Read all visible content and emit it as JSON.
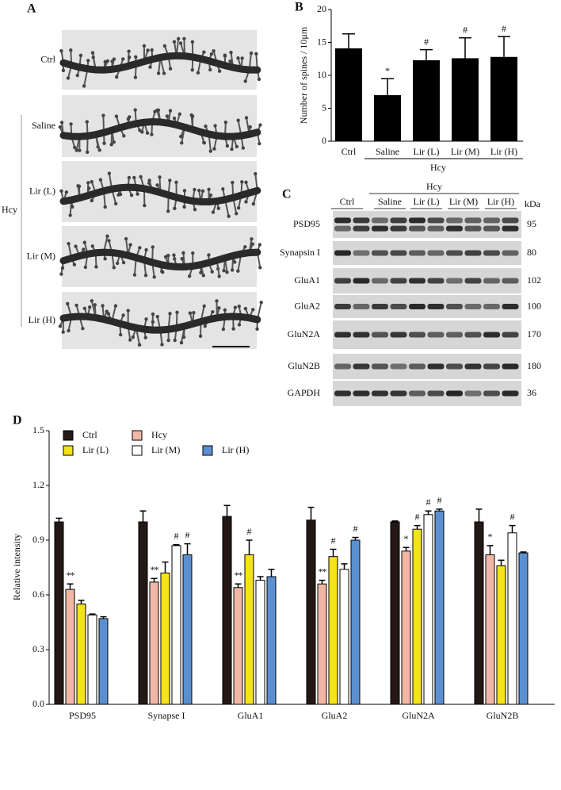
{
  "panel_a": {
    "label": "A",
    "rows": [
      "Ctrl",
      "Saline",
      "Lir (L)",
      "Lir (M)",
      "Lir (H)"
    ],
    "group": "Hcy"
  },
  "panel_c": {
    "label": "C",
    "group": "Hcy",
    "lanes": [
      "Ctrl",
      "Saline",
      "Lir (L)",
      "Lir (M)",
      "Lir (H)"
    ],
    "unit": "kDa",
    "proteins": [
      "PSD95",
      "Synapsin I",
      "GluA1",
      "GluA2",
      "GluN2A",
      "GluN2B",
      "GAPDH"
    ],
    "kda": [
      "95",
      "80",
      "102",
      "100",
      "170",
      "180",
      "36"
    ]
  },
  "chart_data": [
    {
      "label": "B",
      "type": "bar",
      "ylabel": "Number of spines / 10μm",
      "categories": [
        "Ctrl",
        "Saline",
        "Lir (L)",
        "Lir (M)",
        "Lir (H)"
      ],
      "values": [
        14.1,
        7.0,
        12.3,
        12.6,
        12.8
      ],
      "errors": [
        2.2,
        2.5,
        1.6,
        3.1,
        3.1
      ],
      "annotations": [
        null,
        "*",
        "#",
        "#",
        "#"
      ],
      "group_label": "Hcy",
      "color": "#000000",
      "ylim": [
        0,
        20
      ],
      "yticks": [
        0,
        5,
        10,
        15,
        20
      ]
    },
    {
      "label": "D",
      "type": "grouped_bar",
      "ylabel": "Relative intensity",
      "categories": [
        "PSD95",
        "Synapse I",
        "GluA1",
        "GluA2",
        "GluN2A",
        "GluN2B"
      ],
      "series": [
        {
          "name": "Ctrl",
          "color": "#231815",
          "values": [
            1.0,
            1.0,
            1.03,
            1.01,
            1.0,
            1.0
          ],
          "errors": [
            0.02,
            0.06,
            0.06,
            0.07,
            0.005,
            0.07
          ],
          "annotations": [
            null,
            null,
            null,
            null,
            null,
            null
          ]
        },
        {
          "name": "Hcy",
          "color": "#f0b8a4",
          "values": [
            0.63,
            0.67,
            0.64,
            0.66,
            0.84,
            0.82
          ],
          "errors": [
            0.03,
            0.02,
            0.02,
            0.02,
            0.02,
            0.05
          ],
          "annotations": [
            "**",
            "**",
            "**",
            "**",
            "*",
            "*"
          ]
        },
        {
          "name": "Lir (L)",
          "color": "#f4e21a",
          "values": [
            0.55,
            0.72,
            0.82,
            0.81,
            0.96,
            0.76
          ],
          "errors": [
            0.02,
            0.06,
            0.08,
            0.04,
            0.02,
            0.03
          ],
          "annotations": [
            null,
            null,
            "#",
            "#",
            "#",
            null
          ]
        },
        {
          "name": "Lir (M)",
          "color": "#ffffff",
          "values": [
            0.49,
            0.87,
            0.68,
            0.74,
            1.04,
            0.94
          ],
          "errors": [
            0.005,
            0.005,
            0.02,
            0.03,
            0.02,
            0.04
          ],
          "annotations": [
            null,
            "#",
            null,
            null,
            "#",
            "#"
          ]
        },
        {
          "name": "Lir (H)",
          "color": "#5b8fd0",
          "values": [
            0.47,
            0.82,
            0.7,
            0.9,
            1.06,
            0.83
          ],
          "errors": [
            0.01,
            0.06,
            0.04,
            0.015,
            0.01,
            0.005
          ],
          "annotations": [
            null,
            "#",
            null,
            "#",
            "#",
            null
          ]
        }
      ],
      "ylim": [
        0,
        1.5
      ],
      "yticks": [
        {
          "value": 0,
          "label": "0.0"
        },
        0.3,
        0.6,
        0.9,
        1.2,
        1.5
      ]
    }
  ]
}
